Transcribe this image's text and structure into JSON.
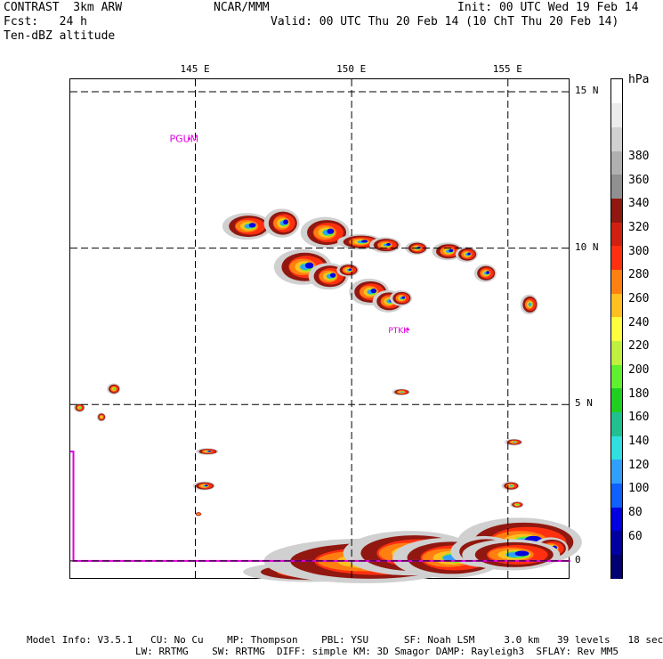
{
  "header": {
    "model": "CONTRAST  3km ARW",
    "center": "NCAR/MMM",
    "init": "Init: 00 UTC Wed 19 Feb 14",
    "fcst": "Fcst:   24 h",
    "valid": "Valid: 00 UTC Thu 20 Feb 14 (10 ChT Thu 20 Feb 14)",
    "field": "Ten-dBZ altitude"
  },
  "map": {
    "lon_range": [
      141,
      157
    ],
    "lat_range": [
      -0.6,
      15.4
    ],
    "lon_ticks": [
      {
        "lon": 145,
        "label": "145 E"
      },
      {
        "lon": 150,
        "label": "150 E"
      },
      {
        "lon": 155,
        "label": "155 E"
      }
    ],
    "lat_ticks": [
      {
        "lat": 15,
        "label": "15 N"
      },
      {
        "lat": 10,
        "label": "10 N"
      },
      {
        "lat": 5,
        "label": "5 N"
      },
      {
        "lat": 0,
        "label": "0"
      }
    ],
    "stations": [
      {
        "id": "PGUM",
        "lon": 144.8,
        "lat": 13.5
      },
      {
        "id": "PTKK",
        "lon": 151.8,
        "lat": 7.4
      }
    ],
    "stripe_color": "#e000e0",
    "gridline_color": "#000000"
  },
  "colorbar": {
    "unit": "hPa",
    "labels": [
      "60",
      "80",
      "100",
      "120",
      "140",
      "160",
      "180",
      "200",
      "220",
      "240",
      "260",
      "280",
      "300",
      "320",
      "340",
      "360",
      "380"
    ],
    "colors": [
      "#000070",
      "#0000a0",
      "#0000e0",
      "#1060ff",
      "#30a0ff",
      "#30e0e0",
      "#20c090",
      "#20d020",
      "#60f030",
      "#c0f040",
      "#ffff40",
      "#ffc020",
      "#ff8010",
      "#ff3010",
      "#d02010",
      "#901810",
      "#909090",
      "#b0b0b0",
      "#d0d0d0",
      "#ececec",
      "#ffffff"
    ]
  },
  "footer": {
    "line1": "Model Info: V3.5.1   CU: No Cu    MP: Thompson    PBL: YSU      SF: Noah LSM     3.0 km   39 levels   18 sec",
    "line2": "LW: RRTMG    SW: RRTMG  DIFF: simple KM: 3D Smagor DAMP: Rayleigh3  SFLAY: Rev MM5"
  }
}
